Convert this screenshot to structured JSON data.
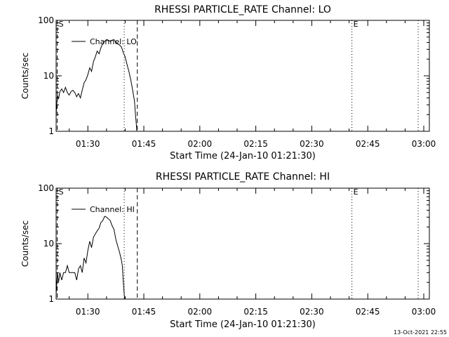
{
  "footer": {
    "timestamp": "13-Oct-2021 22:55"
  },
  "chart_data": [
    {
      "type": "line",
      "title": "RHESSI PARTICLE_RATE Channel: LO",
      "xlabel": "Start Time (24-Jan-10 01:21:30)",
      "ylabel": "Counts/sec",
      "xscale": "time",
      "yscale": "log",
      "xlim": [
        "01:21:30",
        "03:01:30"
      ],
      "ylim": [
        1,
        100
      ],
      "xticks": [
        "01:30",
        "01:45",
        "02:00",
        "02:15",
        "02:30",
        "02:45",
        "03:00"
      ],
      "yticks": [
        "1",
        "10",
        "100"
      ],
      "legend": {
        "position": "top-left",
        "label": "Channel: LO"
      },
      "markers": [
        {
          "time": "01:21:48",
          "style": "dashed",
          "label": "S"
        },
        {
          "time": "01:39:45",
          "style": "dotted",
          "label": ""
        },
        {
          "time": "01:43:15",
          "style": "dashed",
          "label": ""
        },
        {
          "time": "02:40:45",
          "style": "dotted",
          "label": "E"
        },
        {
          "time": "02:58:30",
          "style": "dotted",
          "label": ""
        }
      ],
      "series": [
        {
          "name": "Channel: LO",
          "x": [
            "01:21:30",
            "01:21:50",
            "01:22:10",
            "01:22:30",
            "01:23:00",
            "01:23:30",
            "01:24:00",
            "01:24:30",
            "01:25:00",
            "01:25:30",
            "01:26:00",
            "01:26:30",
            "01:27:00",
            "01:27:30",
            "01:28:00",
            "01:28:30",
            "01:29:00",
            "01:29:30",
            "01:30:00",
            "01:30:30",
            "01:31:00",
            "01:31:30",
            "01:32:00",
            "01:32:30",
            "01:33:00",
            "01:33:30",
            "01:34:00",
            "01:34:30",
            "01:35:00",
            "01:35:30",
            "01:36:00",
            "01:36:30",
            "01:37:00",
            "01:37:30",
            "01:38:00",
            "01:38:30",
            "01:39:00",
            "01:39:30",
            "01:40:00",
            "01:40:30",
            "01:41:00",
            "01:41:30",
            "01:42:00",
            "01:42:30",
            "01:42:45",
            "01:43:00",
            "01:43:10"
          ],
          "y": [
            2.0,
            4.5,
            3.8,
            5.2,
            5.8,
            5.0,
            6.2,
            5.0,
            4.5,
            5.2,
            5.5,
            5.0,
            4.2,
            4.8,
            4.0,
            5.5,
            7.5,
            8.5,
            10.5,
            14.0,
            12.0,
            18.0,
            22.0,
            28.0,
            25.0,
            32.0,
            38.0,
            42.0,
            45.0,
            44.0,
            42.0,
            44.0,
            45.0,
            40.0,
            38.0,
            36.0,
            33.0,
            26.0,
            22.0,
            16.0,
            12.0,
            8.5,
            5.5,
            3.5,
            2.0,
            1.3,
            0.9
          ]
        }
      ]
    },
    {
      "type": "line",
      "title": "RHESSI PARTICLE_RATE Channel: HI",
      "xlabel": "Start Time (24-Jan-10 01:21:30)",
      "ylabel": "Counts/sec",
      "xscale": "time",
      "yscale": "log",
      "xlim": [
        "01:21:30",
        "03:01:30"
      ],
      "ylim": [
        1,
        100
      ],
      "xticks": [
        "01:30",
        "01:45",
        "02:00",
        "02:15",
        "02:30",
        "02:45",
        "03:00"
      ],
      "yticks": [
        "1",
        "10",
        "100"
      ],
      "legend": {
        "position": "top-left",
        "label": "Channel: HI"
      },
      "markers": [
        {
          "time": "01:21:48",
          "style": "dashed",
          "label": "S"
        },
        {
          "time": "01:39:45",
          "style": "dotted",
          "label": ""
        },
        {
          "time": "01:43:15",
          "style": "dashed",
          "label": ""
        },
        {
          "time": "02:40:45",
          "style": "dotted",
          "label": "E"
        },
        {
          "time": "02:58:30",
          "style": "dotted",
          "label": ""
        }
      ],
      "series": [
        {
          "name": "Channel: HI",
          "x": [
            "01:21:30",
            "01:21:50",
            "01:22:10",
            "01:22:30",
            "01:23:00",
            "01:23:30",
            "01:24:00",
            "01:24:30",
            "01:25:00",
            "01:25:30",
            "01:26:00",
            "01:26:30",
            "01:27:00",
            "01:27:30",
            "01:28:00",
            "01:28:30",
            "01:29:00",
            "01:29:30",
            "01:30:00",
            "01:30:30",
            "01:31:00",
            "01:31:30",
            "01:32:00",
            "01:32:30",
            "01:33:00",
            "01:33:30",
            "01:34:00",
            "01:34:30",
            "01:35:00",
            "01:35:30",
            "01:36:00",
            "01:36:30",
            "01:37:00",
            "01:37:30",
            "01:38:00",
            "01:38:30",
            "01:39:00",
            "01:39:15",
            "01:39:30",
            "01:39:45",
            "01:40:00"
          ],
          "y": [
            1.2,
            3.0,
            2.0,
            3.0,
            2.2,
            3.0,
            3.0,
            4.0,
            3.0,
            3.0,
            3.0,
            3.0,
            2.2,
            3.5,
            4.0,
            3.0,
            5.5,
            4.5,
            7.5,
            11.0,
            8.5,
            13.0,
            15.0,
            17.0,
            19.0,
            24.0,
            26.0,
            31.0,
            30.0,
            28.0,
            26.0,
            21.0,
            18.0,
            12.0,
            9.0,
            7.0,
            5.0,
            4.0,
            2.0,
            1.2,
            0.8
          ]
        }
      ]
    }
  ]
}
